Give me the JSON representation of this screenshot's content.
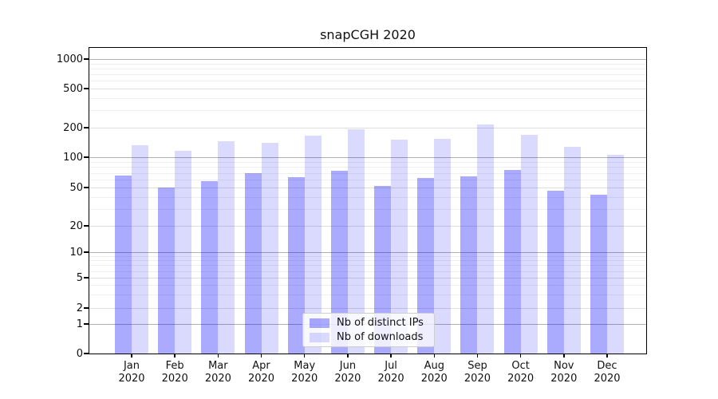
{
  "title": "snapCGH 2020",
  "chart_data": {
    "type": "bar",
    "title": "snapCGH 2020",
    "categories": [
      "Jan",
      "Feb",
      "Mar",
      "Apr",
      "May",
      "Jun",
      "Jul",
      "Aug",
      "Sep",
      "Oct",
      "Nov",
      "Dec"
    ],
    "category_year": "2020",
    "series": [
      {
        "name": "Nb of distinct IPs",
        "color": "#0000ff",
        "alpha": 0.335,
        "values": [
          66,
          50,
          58,
          69,
          63,
          74,
          52,
          62,
          64,
          75,
          46,
          42
        ]
      },
      {
        "name": "Nb of downloads",
        "color": "#0000ff",
        "alpha": 0.145,
        "values": [
          132,
          116,
          146,
          140,
          167,
          193,
          151,
          153,
          215,
          170,
          127,
          106
        ]
      }
    ],
    "yaxis": {
      "scale": "log-like",
      "tick_values": [
        0,
        1,
        2,
        5,
        10,
        20,
        50,
        100,
        200,
        500,
        1000
      ],
      "minor_gridline_values": [
        3,
        4,
        6,
        7,
        8,
        9,
        30,
        40,
        60,
        70,
        80,
        90,
        300,
        400,
        600,
        700,
        800,
        900
      ],
      "decade_values": [
        1,
        10,
        100,
        1000
      ]
    },
    "xlabel": "",
    "ylabel": "",
    "legend_position": "lower center",
    "grid": true,
    "background_color": "#ffffff"
  }
}
